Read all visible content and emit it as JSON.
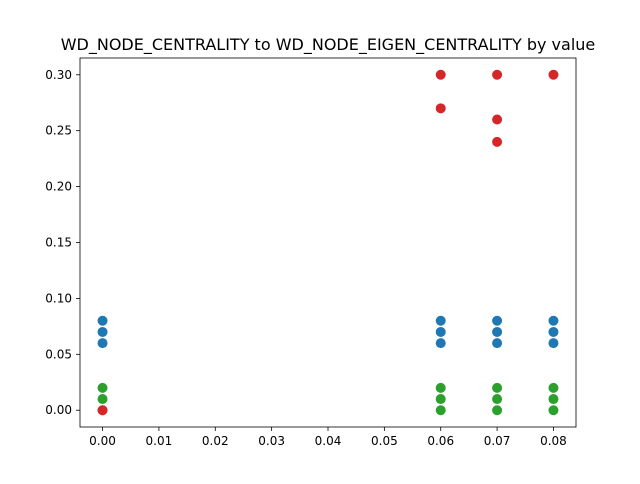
{
  "chart_data": {
    "type": "scatter",
    "title": "WD_NODE_CENTRALITY to WD_NODE_EIGEN_CENTRALITY by value",
    "xlabel": "",
    "ylabel": "",
    "xlim": [
      -0.004,
      0.084
    ],
    "ylim": [
      -0.015,
      0.315
    ],
    "x_ticks": [
      0.0,
      0.01,
      0.02,
      0.03,
      0.04,
      0.05,
      0.06,
      0.07,
      0.08
    ],
    "x_tick_labels": [
      "0.00",
      "0.01",
      "0.02",
      "0.03",
      "0.04",
      "0.05",
      "0.06",
      "0.07",
      "0.08"
    ],
    "y_ticks": [
      0.0,
      0.05,
      0.1,
      0.15,
      0.2,
      0.25,
      0.3
    ],
    "y_tick_labels": [
      "0.00",
      "0.05",
      "0.10",
      "0.15",
      "0.20",
      "0.25",
      "0.30"
    ],
    "grid": false,
    "legend": "none",
    "series": [
      {
        "color": "#1f77b4",
        "points": [
          [
            0.0,
            0.06
          ],
          [
            0.0,
            0.07
          ],
          [
            0.0,
            0.08
          ],
          [
            0.06,
            0.06
          ],
          [
            0.06,
            0.07
          ],
          [
            0.06,
            0.08
          ],
          [
            0.07,
            0.06
          ],
          [
            0.07,
            0.07
          ],
          [
            0.07,
            0.08
          ],
          [
            0.08,
            0.06
          ],
          [
            0.08,
            0.07
          ],
          [
            0.08,
            0.08
          ]
        ]
      },
      {
        "color": "#2ca02c",
        "points": [
          [
            0.0,
            0.0
          ],
          [
            0.0,
            0.01
          ],
          [
            0.0,
            0.02
          ],
          [
            0.06,
            0.0
          ],
          [
            0.06,
            0.01
          ],
          [
            0.06,
            0.02
          ],
          [
            0.07,
            0.0
          ],
          [
            0.07,
            0.01
          ],
          [
            0.07,
            0.02
          ],
          [
            0.08,
            0.0
          ],
          [
            0.08,
            0.01
          ],
          [
            0.08,
            0.02
          ]
        ]
      },
      {
        "color": "#d62728",
        "points": [
          [
            0.0,
            0.0
          ],
          [
            0.06,
            0.27
          ],
          [
            0.06,
            0.3
          ],
          [
            0.07,
            0.24
          ],
          [
            0.07,
            0.26
          ],
          [
            0.07,
            0.3
          ],
          [
            0.08,
            0.3
          ]
        ]
      }
    ]
  }
}
